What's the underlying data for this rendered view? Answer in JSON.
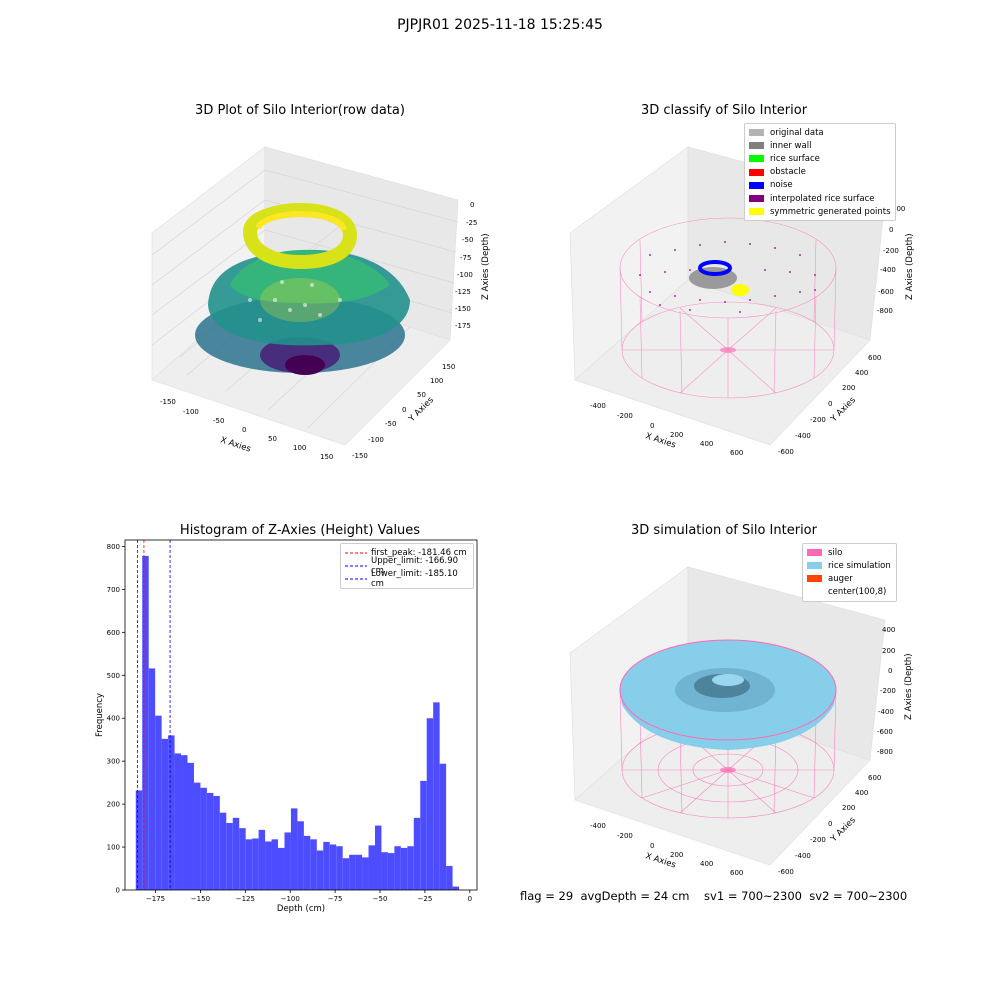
{
  "suptitle": "PJPJR01 2025-11-18 15:25:45",
  "chart_data": [
    {
      "type": "scatter",
      "title": "3D Plot of Silo Interior(row data)",
      "xlabel": "X Axies",
      "ylabel": "Y Axies",
      "zlabel": "Z Axies (Depth)",
      "x_ticks": [
        "-150",
        "-100",
        "-50",
        "0",
        "50",
        "100",
        "150"
      ],
      "y_ticks": [
        "-150",
        "-100",
        "-50",
        "0",
        "50",
        "100",
        "150"
      ],
      "z_ticks": [
        "0",
        "-25",
        "-50",
        "-75",
        "-100",
        "-125",
        "-150",
        "-175"
      ],
      "colormap": "viridis"
    },
    {
      "type": "scatter",
      "title": "3D classify of Silo Interior",
      "xlabel": "X Axies",
      "ylabel": "Y Axies",
      "zlabel": "Z Axies (Depth)",
      "x_ticks": [
        "-400",
        "-200",
        "0",
        "200",
        "400",
        "600"
      ],
      "y_ticks": [
        "-600",
        "-400",
        "-200",
        "0",
        "200",
        "400",
        "600"
      ],
      "z_ticks": [
        "200",
        "0",
        "-200",
        "-400",
        "-600",
        "-800"
      ],
      "legend": [
        {
          "label": "original data",
          "color": "#b3b3b3"
        },
        {
          "label": "inner wall",
          "color": "#808080"
        },
        {
          "label": "rice surface",
          "color": "#00ff00"
        },
        {
          "label": "obstacle",
          "color": "#ff0000"
        },
        {
          "label": "noise",
          "color": "#0000ff"
        },
        {
          "label": "interpolated rice surface",
          "color": "#800080"
        },
        {
          "label": "symmetric generated points",
          "color": "#ffff00"
        }
      ]
    },
    {
      "type": "bar",
      "title": "Histogram of Z-Axies (Height) Values",
      "xlabel": "Depth (cm)",
      "ylabel": "Frequency",
      "xlim": [
        -192,
        4
      ],
      "ylim": [
        0,
        815
      ],
      "x_ticks": [
        -175,
        -150,
        -125,
        -100,
        -75,
        -50,
        -25,
        0
      ],
      "x_tick_labels": [
        "−175",
        "−150",
        "−125",
        "−100",
        "−75",
        "−50",
        "−25",
        "0"
      ],
      "y_ticks": [
        0,
        100,
        200,
        300,
        400,
        500,
        600,
        700,
        800
      ],
      "bar_color": "#4d4dff",
      "bin_start": -186.0,
      "bin_width": 3.6,
      "values": [
        232,
        778,
        516,
        406,
        352,
        360,
        318,
        314,
        296,
        250,
        238,
        226,
        219,
        180,
        156,
        168,
        144,
        118,
        120,
        140,
        113,
        118,
        98,
        134,
        190,
        160,
        126,
        118,
        92,
        112,
        106,
        102,
        74,
        82,
        82,
        76,
        104,
        150,
        88,
        86,
        102,
        98,
        102,
        168,
        254,
        400,
        437,
        294,
        56,
        8
      ],
      "vlines": [
        {
          "label": "first_peak: -181.46 cm",
          "x": -181.46,
          "color": "#ff0000"
        },
        {
          "label": "Upper_limit: -166.90 cm",
          "x": -166.9,
          "color": "#0000ff"
        },
        {
          "label": "Lower_limit: -185.10 cm",
          "x": -185.1,
          "color": "#0000ff"
        }
      ]
    },
    {
      "type": "surface",
      "title": "3D simulation of Silo Interior",
      "xlabel": "X Axies",
      "ylabel": "Y Axies",
      "zlabel": "Z Axies (Depth)",
      "x_ticks": [
        "-400",
        "-200",
        "0",
        "200",
        "400",
        "600"
      ],
      "y_ticks": [
        "-600",
        "-400",
        "-200",
        "0",
        "200",
        "400",
        "600"
      ],
      "z_ticks": [
        "400",
        "200",
        "0",
        "-200",
        "-400",
        "-600",
        "-800"
      ],
      "legend": [
        {
          "label": "silo",
          "color": "#ff69b4"
        },
        {
          "label": "rice simulation",
          "color": "#87ceeb"
        },
        {
          "label": "auger",
          "color": "#ff4500"
        },
        {
          "label": "center(100,8)",
          "color": "#ffffff"
        }
      ]
    }
  ],
  "footer": "flag = 29  avgDepth = 24 cm    sv1 = 700~2300  sv2 = 700~2300"
}
